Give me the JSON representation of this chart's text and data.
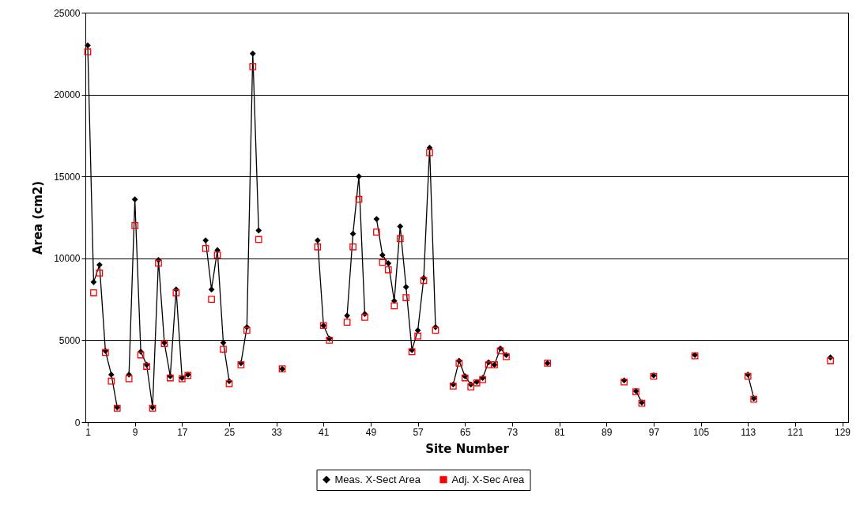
{
  "chart_data": {
    "type": "line",
    "xlabel": "Site Number",
    "ylabel": "Area (cm2)",
    "x": [
      1,
      2,
      3,
      4,
      5,
      6,
      7,
      8,
      9,
      10,
      11,
      12,
      13,
      14,
      15,
      16,
      17,
      18,
      19,
      21,
      22,
      23,
      24,
      25,
      26,
      27,
      28,
      29,
      30,
      31,
      34,
      35,
      40,
      41,
      42,
      43,
      45,
      46,
      47,
      48,
      49,
      50,
      51,
      52,
      53,
      54,
      55,
      56,
      57,
      58,
      59,
      60,
      61,
      63,
      64,
      65,
      66,
      67,
      68,
      69,
      70,
      71,
      72,
      73,
      79,
      80,
      92,
      93,
      94,
      95,
      96,
      97,
      98,
      104,
      105,
      113,
      114,
      115,
      127
    ],
    "series": [
      {
        "name": "Meas. X-Sect Area",
        "type": "line",
        "marker": "diamond",
        "color": "#000000",
        "values": [
          23000,
          8550,
          9600,
          4350,
          2900,
          900,
          null,
          2900,
          13600,
          4300,
          3500,
          900,
          9900,
          4850,
          2800,
          8100,
          2700,
          2900,
          null,
          11100,
          8100,
          10500,
          4850,
          2500,
          null,
          3600,
          5800,
          22500,
          11700,
          null,
          3250,
          null,
          11100,
          5900,
          5100,
          null,
          6500,
          11500,
          15000,
          6600,
          null,
          12400,
          10200,
          9700,
          7400,
          11950,
          8250,
          4400,
          5600,
          8800,
          16750,
          5800,
          null,
          2300,
          3750,
          2800,
          2300,
          2450,
          2700,
          3650,
          3500,
          4500,
          4100,
          null,
          3600,
          null,
          2550,
          null,
          1900,
          1200,
          null,
          2850,
          null,
          4100,
          null,
          2900,
          1450,
          null,
          3950
        ]
      },
      {
        "name": "Adj. X-Sec Area",
        "type": "scatter",
        "marker": "square",
        "color": "#ff0000",
        "values": [
          22600,
          7900,
          9100,
          4250,
          2500,
          850,
          null,
          2650,
          12000,
          4100,
          3400,
          850,
          9700,
          4800,
          2700,
          7900,
          2650,
          2850,
          null,
          10600,
          7500,
          10200,
          4450,
          2350,
          null,
          3500,
          5600,
          21700,
          11150,
          null,
          3250,
          null,
          10700,
          5900,
          5000,
          null,
          6100,
          10700,
          13600,
          6400,
          null,
          11600,
          9750,
          9300,
          7100,
          11200,
          7600,
          4300,
          5250,
          8650,
          16450,
          5600,
          null,
          2200,
          3600,
          2700,
          2150,
          2400,
          2600,
          3500,
          3500,
          4350,
          4000,
          null,
          3600,
          null,
          2450,
          null,
          1850,
          1150,
          null,
          2800,
          null,
          4050,
          null,
          2800,
          1400,
          null,
          3750
        ]
      }
    ],
    "xlim": [
      0.6,
      130
    ],
    "xticks": [
      1,
      9,
      17,
      25,
      33,
      41,
      49,
      57,
      65,
      73,
      81,
      89,
      97,
      105,
      113,
      121,
      129
    ],
    "ylim": [
      0,
      25000
    ],
    "yticks": [
      0,
      5000,
      10000,
      15000,
      20000,
      25000
    ],
    "grid": "y",
    "legend": "bottom"
  }
}
